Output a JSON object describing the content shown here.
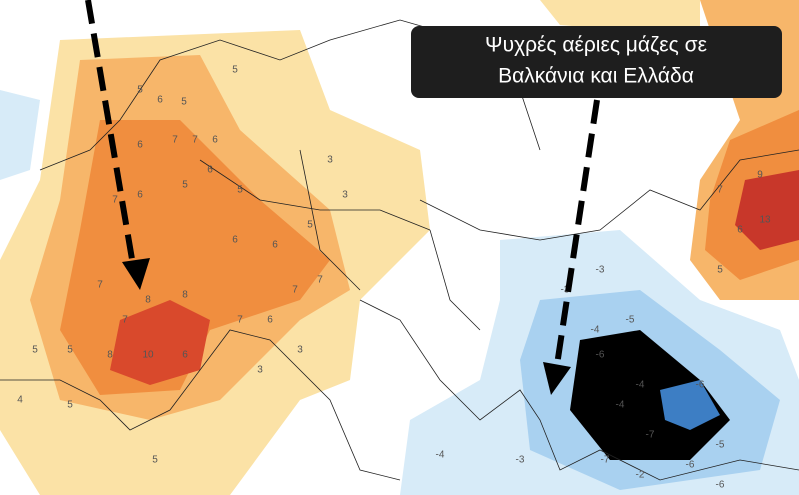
{
  "annotation": {
    "lines": [
      "Ψυχρές αέριες μάζες σε",
      "Βαλκάνια και Ελλάδα"
    ]
  },
  "map_labels": [
    5,
    6,
    5,
    6,
    7,
    7,
    6,
    7,
    6,
    5,
    6,
    5,
    6,
    6,
    5,
    7,
    8,
    8,
    7,
    10,
    6,
    8,
    5,
    7,
    7,
    7,
    6,
    5,
    4,
    5,
    5,
    3,
    3,
    3,
    3,
    5,
    9,
    13,
    5,
    6,
    7,
    -3,
    -3,
    -5,
    -4,
    -6,
    -4,
    -6,
    -4,
    -7,
    -7,
    -5,
    -6,
    -6,
    -4,
    -3,
    -2
  ]
}
